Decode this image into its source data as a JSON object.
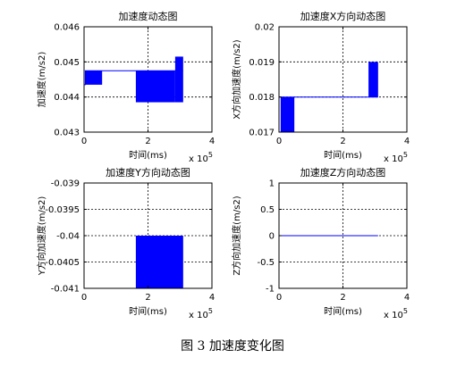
{
  "caption": "图 3  加速度变化图",
  "colors": {
    "series": "#0000ff",
    "axis": "#000000",
    "grid": "#000000"
  },
  "chart_data": [
    {
      "type": "line",
      "title": "加速度动态图",
      "xlabel": "时间(ms)",
      "ylabel": "加速度(m/s2)",
      "x_multiplier": "x 10^5",
      "xlim": [
        0,
        4
      ],
      "ylim": [
        0.043,
        0.046
      ],
      "xticks": [
        {
          "v": 0,
          "label": "0"
        },
        {
          "v": 2,
          "label": "2"
        },
        {
          "v": 4,
          "label": "4"
        }
      ],
      "yticks": [
        {
          "v": 0.043,
          "label": "0.043"
        },
        {
          "v": 0.044,
          "label": "0.044"
        },
        {
          "v": 0.045,
          "label": "0.045"
        },
        {
          "v": 0.046,
          "label": "0.046"
        }
      ],
      "grid": true,
      "series": [
        {
          "line": [
            [
              0,
              0.04435
            ],
            [
              0.04,
              0.04435
            ],
            [
              0.04,
              0.04475
            ],
            [
              0.55,
              0.04475
            ],
            [
              0.55,
              0.04435
            ],
            [
              0.55,
              0.04475
            ],
            [
              1.62,
              0.04475
            ],
            [
              3.1,
              0.04475
            ]
          ],
          "bands": [
            {
              "x0": 0.04,
              "x1": 0.55,
              "y0": 0.04435,
              "y1": 0.04475
            },
            {
              "x0": 1.62,
              "x1": 2.85,
              "y0": 0.04385,
              "y1": 0.04475
            },
            {
              "x0": 2.85,
              "x1": 3.1,
              "y0": 0.04385,
              "y1": 0.04515
            }
          ]
        }
      ]
    },
    {
      "type": "line",
      "title": "加速度X方向动态图",
      "xlabel": "时间(ms)",
      "ylabel": "X方向加速度(m/s2)",
      "x_multiplier": "x 10^5",
      "xlim": [
        0,
        4
      ],
      "ylim": [
        0.017,
        0.02
      ],
      "xticks": [
        {
          "v": 0,
          "label": "0"
        },
        {
          "v": 2,
          "label": "2"
        },
        {
          "v": 4,
          "label": "4"
        }
      ],
      "yticks": [
        {
          "v": 0.017,
          "label": "0.017"
        },
        {
          "v": 0.018,
          "label": "0.018"
        },
        {
          "v": 0.019,
          "label": "0.019"
        },
        {
          "v": 0.02,
          "label": "0.02"
        }
      ],
      "grid": true,
      "series": [
        {
          "line": [
            [
              0.05,
              0.018
            ],
            [
              3.1,
              0.018
            ]
          ],
          "bands": [
            {
              "x0": 0.05,
              "x1": 0.48,
              "y0": 0.017,
              "y1": 0.018
            },
            {
              "x0": 2.8,
              "x1": 3.1,
              "y0": 0.018,
              "y1": 0.019
            }
          ]
        }
      ]
    },
    {
      "type": "line",
      "title": "加速度Y方向动态图",
      "xlabel": "时间(ms)",
      "ylabel": "Y方向加速度(m/s2)",
      "x_multiplier": "x 10^5",
      "xlim": [
        0,
        4
      ],
      "ylim": [
        -0.041,
        -0.039
      ],
      "xticks": [
        {
          "v": 0,
          "label": "0"
        },
        {
          "v": 2,
          "label": "2"
        },
        {
          "v": 4,
          "label": "4"
        }
      ],
      "yticks": [
        {
          "v": -0.041,
          "label": "-0.041"
        },
        {
          "v": -0.0405,
          "label": "-0.0405"
        },
        {
          "v": -0.04,
          "label": "-0.04"
        },
        {
          "v": -0.0395,
          "label": "-0.0395"
        },
        {
          "v": -0.039,
          "label": "-0.039"
        }
      ],
      "grid": true,
      "series": [
        {
          "line": [
            [
              0,
              -0.041
            ],
            [
              1.62,
              -0.041
            ]
          ],
          "bands": [
            {
              "x0": 1.62,
              "x1": 3.1,
              "y0": -0.041,
              "y1": -0.04
            }
          ]
        }
      ]
    },
    {
      "type": "line",
      "title": "加速度Z方向动态图",
      "xlabel": "时间(ms)",
      "ylabel": "Z方向加速度(m/s2)",
      "x_multiplier": "x 10^5",
      "xlim": [
        0,
        4
      ],
      "ylim": [
        -1,
        1
      ],
      "xticks": [
        {
          "v": 0,
          "label": "0"
        },
        {
          "v": 2,
          "label": "2"
        },
        {
          "v": 4,
          "label": "4"
        }
      ],
      "yticks": [
        {
          "v": -1,
          "label": "-1"
        },
        {
          "v": -0.5,
          "label": "-0.5"
        },
        {
          "v": 0,
          "label": "0"
        },
        {
          "v": 0.5,
          "label": "0.5"
        },
        {
          "v": 1,
          "label": "1"
        }
      ],
      "grid": true,
      "series": [
        {
          "line": [
            [
              0,
              0
            ],
            [
              3.1,
              0
            ]
          ],
          "bands": []
        }
      ]
    }
  ]
}
